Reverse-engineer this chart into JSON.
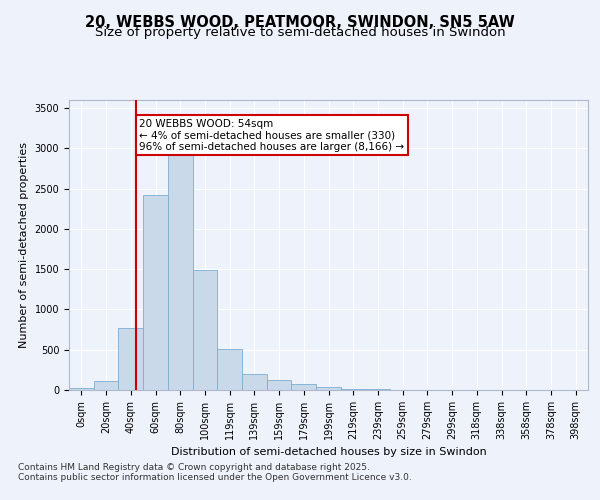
{
  "title1": "20, WEBBS WOOD, PEATMOOR, SWINDON, SN5 5AW",
  "title2": "Size of property relative to semi-detached houses in Swindon",
  "xlabel": "Distribution of semi-detached houses by size in Swindon",
  "ylabel": "Number of semi-detached properties",
  "categories": [
    "0sqm",
    "20sqm",
    "40sqm",
    "60sqm",
    "80sqm",
    "100sqm",
    "119sqm",
    "139sqm",
    "159sqm",
    "179sqm",
    "199sqm",
    "219sqm",
    "239sqm",
    "259sqm",
    "279sqm",
    "299sqm",
    "318sqm",
    "338sqm",
    "358sqm",
    "378sqm",
    "398sqm"
  ],
  "values": [
    20,
    110,
    770,
    2420,
    3020,
    1490,
    510,
    200,
    125,
    75,
    40,
    18,
    10,
    5,
    4,
    3,
    2,
    1,
    1,
    0,
    0
  ],
  "bar_color": "#c9d9ea",
  "bar_edge_color": "#7baed4",
  "annotation_text": "20 WEBBS WOOD: 54sqm\n← 4% of semi-detached houses are smaller (330)\n96% of semi-detached houses are larger (8,166) →",
  "annotation_box_color": "#ffffff",
  "annotation_box_edge_color": "#cc0000",
  "vline_color": "#cc0000",
  "ylim": [
    0,
    3600
  ],
  "yticks": [
    0,
    500,
    1000,
    1500,
    2000,
    2500,
    3000,
    3500
  ],
  "footer_text": "Contains HM Land Registry data © Crown copyright and database right 2025.\nContains public sector information licensed under the Open Government Licence v3.0.",
  "bg_color": "#eef2fb",
  "grid_color": "#ffffff",
  "title1_fontsize": 10.5,
  "title2_fontsize": 9.5,
  "axis_fontsize": 8,
  "tick_fontsize": 7,
  "footer_fontsize": 6.5,
  "annot_fontsize": 7.5
}
